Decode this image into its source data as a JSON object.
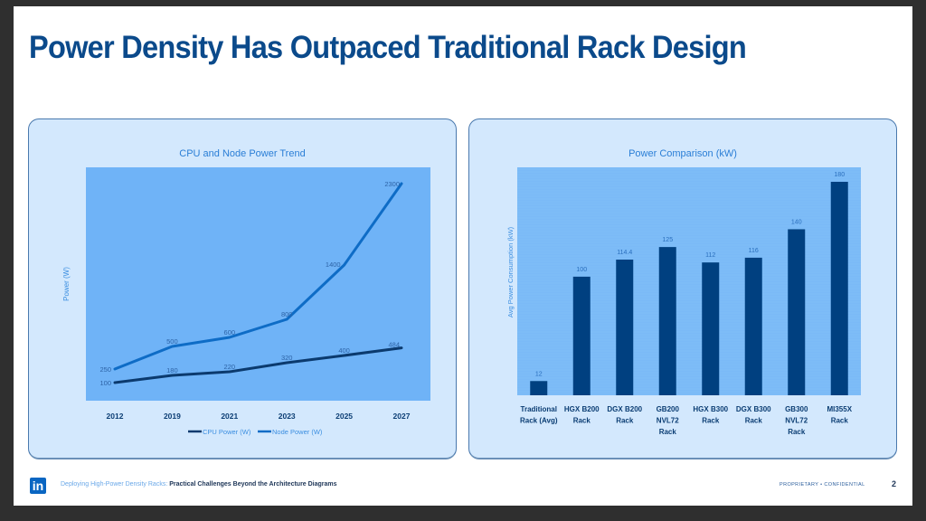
{
  "slide": {
    "title": "Power Density Has Outpaced Traditional Rack Design",
    "page_number": "2",
    "confidentiality": "PROPRIETARY • CONFIDENTIAL",
    "footer": {
      "logo": "in",
      "lead": "Deploying High-Power Density Racks:",
      "rest": " Practical Challenges Beyond the Architecture Diagrams"
    }
  },
  "colors": {
    "title": "#0b4a8b",
    "panel_bg": "#d3e8fd",
    "plot_bg_left": "#6fb3f7",
    "plot_bg_right": "#7bbaf7",
    "cpu_line": "#0b3a6e",
    "node_line": "#0e6cc6",
    "bar": "#004080",
    "axis_text": "#0b3d73",
    "label_text": "#2a6fbd"
  },
  "chart_data": [
    {
      "type": "line",
      "title": "CPU and Node Power Trend",
      "xlabel": "",
      "ylabel": "Power (W)",
      "categories": [
        "2012",
        "2019",
        "2021",
        "2023",
        "2025",
        "2027"
      ],
      "series": [
        {
          "name": "CPU Power (W)",
          "values": [
            100,
            180,
            220,
            320,
            400,
            484
          ]
        },
        {
          "name": "Node Power (W)",
          "values": [
            250,
            500,
            600,
            800,
            1400,
            2300
          ]
        }
      ],
      "ylim": [
        0,
        2400
      ],
      "grid": false,
      "legend": "bottom"
    },
    {
      "type": "bar",
      "title": "Power Comparison (kW)",
      "xlabel": "",
      "ylabel": "Avg Power Consumption (kW)",
      "categories": [
        [
          "Traditional",
          "Rack (Avg)"
        ],
        [
          "HGX B200",
          "Rack"
        ],
        [
          "DGX B200",
          "Rack"
        ],
        [
          "GB200",
          "NVL72",
          "Rack"
        ],
        [
          "HGX B300",
          "Rack"
        ],
        [
          "DGX B300",
          "Rack"
        ],
        [
          "GB300",
          "NVL72",
          "Rack"
        ],
        [
          "MI355X",
          "Rack"
        ]
      ],
      "values": [
        12,
        100,
        114.4,
        125,
        112,
        116,
        140,
        180
      ],
      "value_labels": [
        "12",
        "100",
        "114.4",
        "125",
        "112",
        "116",
        "140",
        "180"
      ],
      "ylim": [
        0,
        190
      ],
      "grid": false,
      "legend": "none"
    }
  ]
}
